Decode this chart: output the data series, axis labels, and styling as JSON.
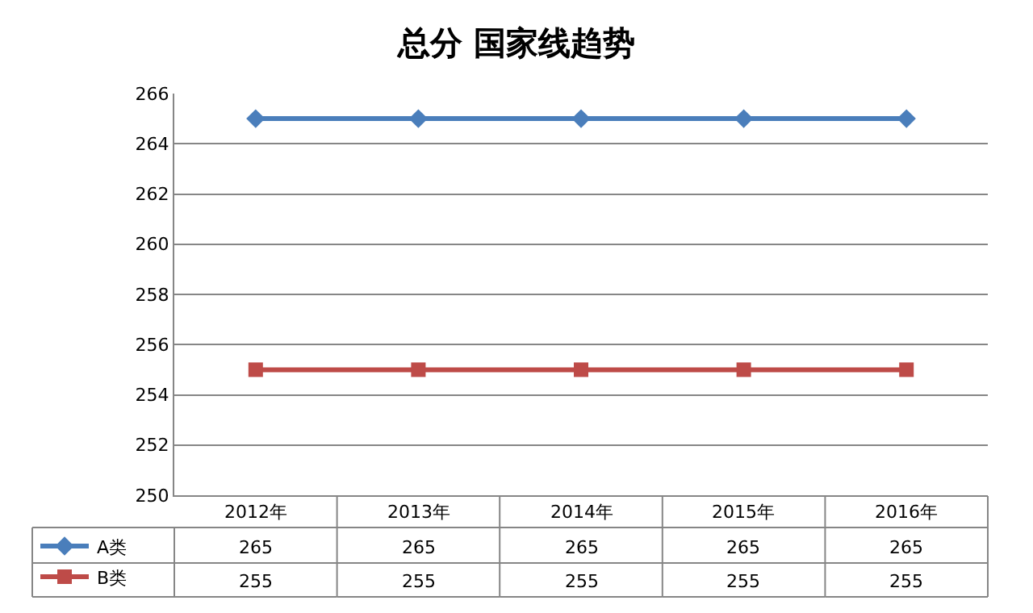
{
  "chart_data": {
    "type": "line",
    "title": "总分 国家线趋势",
    "categories": [
      "2012年",
      "2013年",
      "2014年",
      "2015年",
      "2016年"
    ],
    "series": [
      {
        "name": "A类",
        "color": "#4a7ebb",
        "marker": "diamond",
        "values": [
          265,
          265,
          265,
          265,
          265
        ]
      },
      {
        "name": "B类",
        "color": "#be4b48",
        "marker": "square",
        "values": [
          255,
          255,
          255,
          255,
          255
        ]
      }
    ],
    "ylim": [
      250,
      266
    ],
    "yticks": [
      250,
      252,
      254,
      256,
      258,
      260,
      262,
      264,
      266
    ],
    "grid": "y",
    "legend": "bottom",
    "data_labels": true
  }
}
